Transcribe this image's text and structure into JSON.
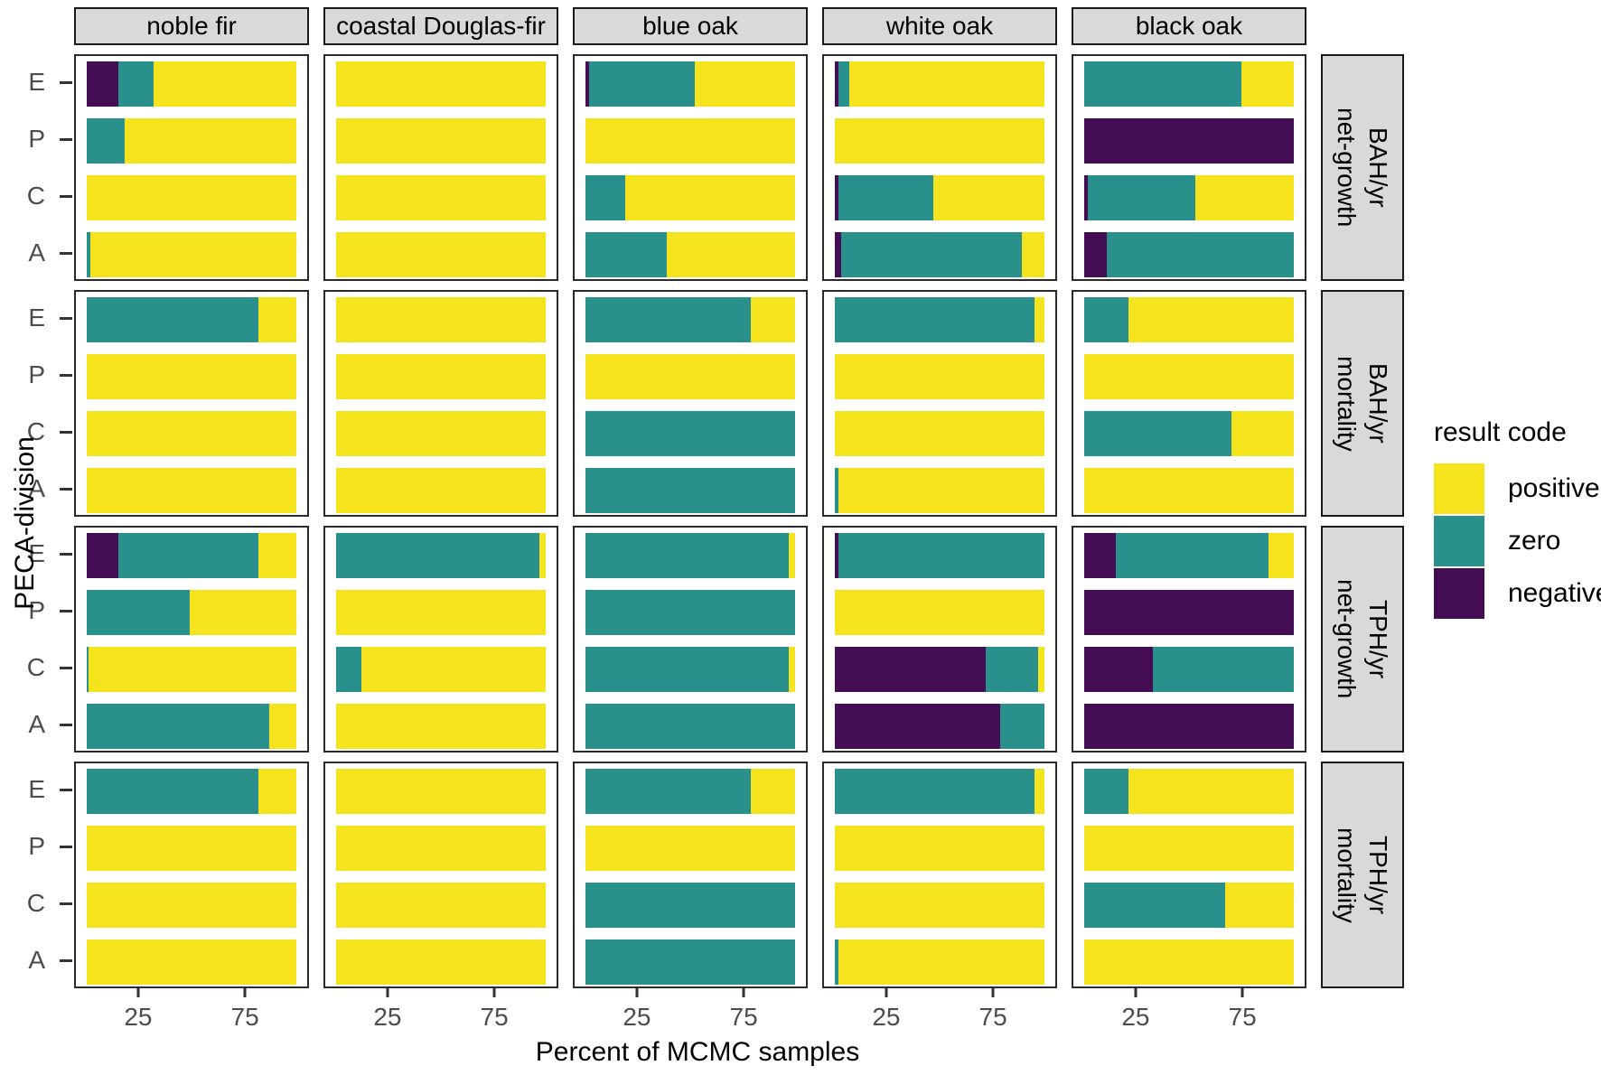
{
  "axes": {
    "x_title": "Percent of MCMC samples",
    "y_title": "PECA-division",
    "x_tick_labels": [
      "25",
      "75"
    ],
    "x_tick_percents": [
      25,
      75
    ],
    "y_categories": [
      "E",
      "P",
      "C",
      "A"
    ]
  },
  "legend": {
    "title": "result code",
    "items": [
      {
        "label": "positive",
        "key": "positive"
      },
      {
        "label": "zero",
        "key": "zero"
      },
      {
        "label": "negative",
        "key": "negative"
      }
    ]
  },
  "colors": {
    "positive": "#F5E41D",
    "zero": "#2A908B",
    "negative": "#440D54",
    "strip_bg": "#D9D9D9"
  },
  "chart_data": {
    "type": "bar",
    "orientation": "horizontal",
    "stacking": "fill-100-percent",
    "segment_order": [
      "negative",
      "zero",
      "positive"
    ],
    "xlabel": "Percent of MCMC samples",
    "ylabel": "PECA-division",
    "xlim": [
      0,
      100
    ],
    "grid": false,
    "legend_position": "right",
    "facet_cols": [
      "noble fir",
      "coastal Douglas-fir",
      "blue oak",
      "white oak",
      "black oak"
    ],
    "facet_rows": [
      "net-growth\nBAH/yr",
      "mortality\nBAH/yr",
      "net-growth\nTPH/yr",
      "mortality\nTPH/yr"
    ],
    "categories": [
      "E",
      "P",
      "C",
      "A"
    ],
    "values_comment": "values[facet_row][facet_col][category] = [negative%, zero%, positive%]",
    "values": [
      [
        [
          [
            15,
            17,
            68
          ],
          [
            0,
            18,
            82
          ],
          [
            0,
            0,
            100
          ],
          [
            0,
            2,
            98
          ]
        ],
        [
          [
            0,
            0,
            100
          ],
          [
            0,
            0,
            100
          ],
          [
            0,
            0,
            100
          ],
          [
            0,
            0,
            100
          ]
        ],
        [
          [
            2,
            50,
            48
          ],
          [
            0,
            0,
            100
          ],
          [
            0,
            19,
            81
          ],
          [
            0,
            39,
            61
          ]
        ],
        [
          [
            2,
            5,
            93
          ],
          [
            0,
            0,
            100
          ],
          [
            2,
            45,
            53
          ],
          [
            3,
            86,
            11
          ]
        ],
        [
          [
            0,
            75,
            25
          ],
          [
            100,
            0,
            0
          ],
          [
            2,
            51,
            47
          ],
          [
            11,
            89,
            0
          ]
        ]
      ],
      [
        [
          [
            0,
            82,
            18
          ],
          [
            0,
            0,
            100
          ],
          [
            0,
            0,
            100
          ],
          [
            0,
            0,
            100
          ]
        ],
        [
          [
            0,
            0,
            100
          ],
          [
            0,
            0,
            100
          ],
          [
            0,
            0,
            100
          ],
          [
            0,
            0,
            100
          ]
        ],
        [
          [
            0,
            79,
            21
          ],
          [
            0,
            0,
            100
          ],
          [
            0,
            100,
            0
          ],
          [
            0,
            100,
            0
          ]
        ],
        [
          [
            0,
            95,
            5
          ],
          [
            0,
            0,
            100
          ],
          [
            0,
            0,
            100
          ],
          [
            0,
            2,
            98
          ]
        ],
        [
          [
            0,
            21,
            79
          ],
          [
            0,
            0,
            100
          ],
          [
            0,
            70,
            30
          ],
          [
            0,
            0,
            100
          ]
        ]
      ],
      [
        [
          [
            15,
            67,
            18
          ],
          [
            0,
            49,
            51
          ],
          [
            0,
            1,
            99
          ],
          [
            0,
            87,
            13
          ]
        ],
        [
          [
            0,
            97,
            3
          ],
          [
            0,
            0,
            100
          ],
          [
            0,
            12,
            88
          ],
          [
            0,
            0,
            100
          ]
        ],
        [
          [
            0,
            97,
            3
          ],
          [
            0,
            100,
            0
          ],
          [
            0,
            97,
            3
          ],
          [
            0,
            100,
            0
          ]
        ],
        [
          [
            2,
            98,
            0
          ],
          [
            0,
            0,
            100
          ],
          [
            72,
            25,
            3
          ],
          [
            79,
            21,
            0
          ]
        ],
        [
          [
            15,
            73,
            12
          ],
          [
            100,
            0,
            0
          ],
          [
            33,
            67,
            0
          ],
          [
            100,
            0,
            0
          ]
        ]
      ],
      [
        [
          [
            0,
            82,
            18
          ],
          [
            0,
            0,
            100
          ],
          [
            0,
            0,
            100
          ],
          [
            0,
            0,
            100
          ]
        ],
        [
          [
            0,
            0,
            100
          ],
          [
            0,
            0,
            100
          ],
          [
            0,
            0,
            100
          ],
          [
            0,
            0,
            100
          ]
        ],
        [
          [
            0,
            79,
            21
          ],
          [
            0,
            0,
            100
          ],
          [
            0,
            100,
            0
          ],
          [
            0,
            100,
            0
          ]
        ],
        [
          [
            0,
            95,
            5
          ],
          [
            0,
            0,
            100
          ],
          [
            0,
            0,
            100
          ],
          [
            0,
            2,
            98
          ]
        ],
        [
          [
            0,
            21,
            79
          ],
          [
            0,
            0,
            100
          ],
          [
            0,
            67,
            33
          ],
          [
            0,
            0,
            100
          ]
        ]
      ]
    ]
  }
}
